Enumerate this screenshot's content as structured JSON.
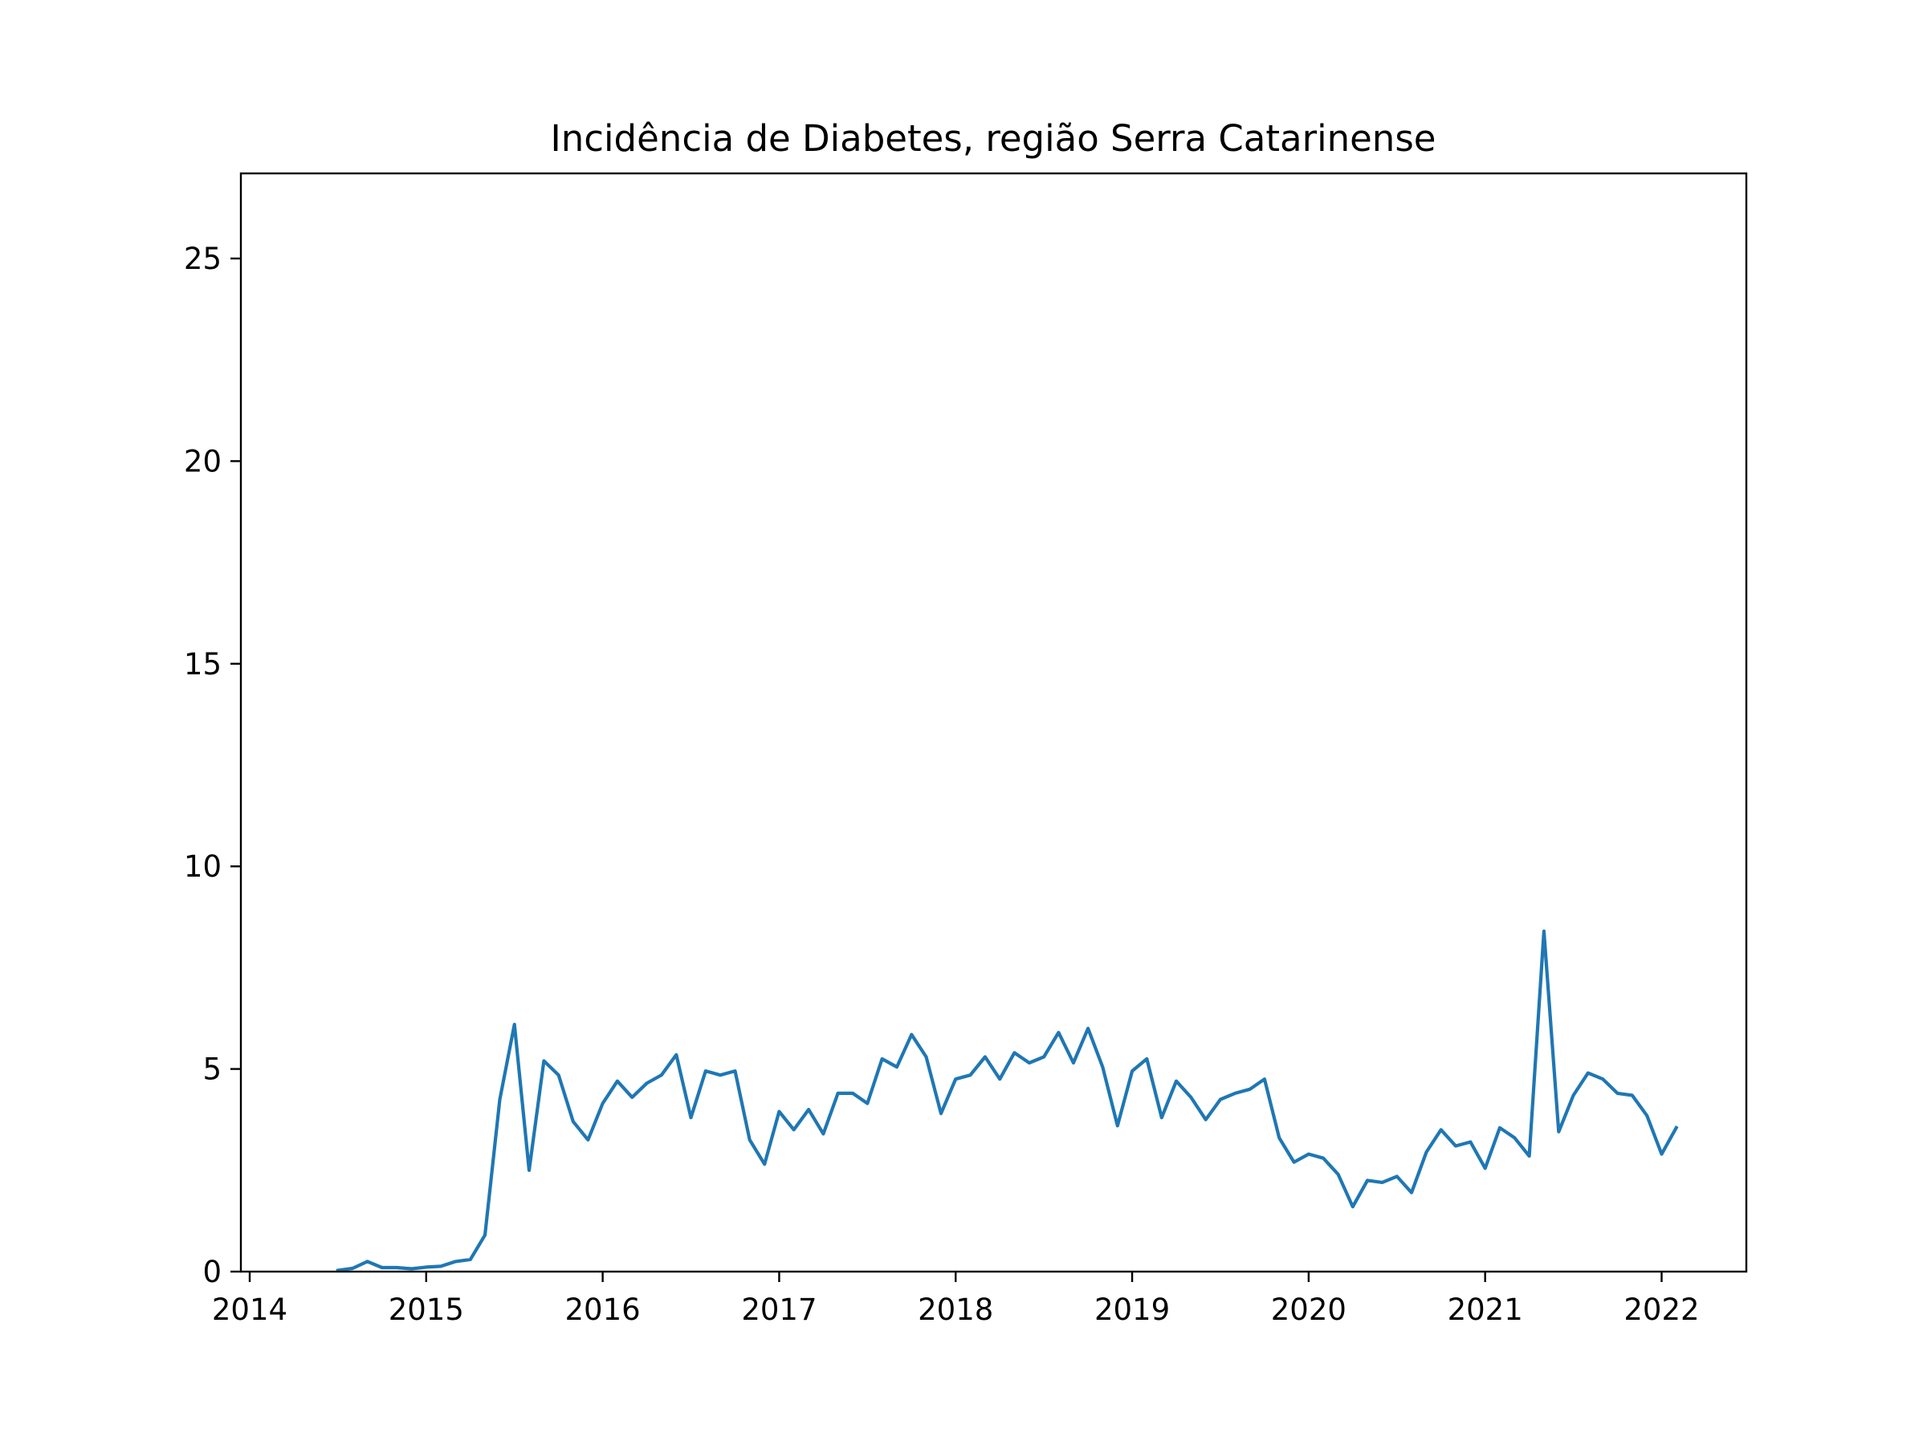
{
  "chart_data": {
    "type": "line",
    "title": "Incidência de Diabetes, região Serra Catarinense",
    "xlabel": "",
    "ylabel": "",
    "xlim": [
      2013.95,
      2022.48
    ],
    "ylim": [
      0,
      27.1
    ],
    "x_ticks": [
      2014,
      2015,
      2016,
      2017,
      2018,
      2019,
      2020,
      2021,
      2022
    ],
    "x_tick_labels": [
      "2014",
      "2015",
      "2016",
      "2017",
      "2018",
      "2019",
      "2020",
      "2021",
      "2022"
    ],
    "y_ticks": [
      0,
      5,
      10,
      15,
      20,
      25
    ],
    "y_tick_labels": [
      "0",
      "5",
      "10",
      "15",
      "20",
      "25"
    ],
    "grid": false,
    "series": [
      {
        "name": "Incidência",
        "color": "#1f77b4",
        "x": [
          2014.5,
          2014.583,
          2014.667,
          2014.75,
          2014.833,
          2014.917,
          2015.0,
          2015.083,
          2015.167,
          2015.25,
          2015.333,
          2015.417,
          2015.5,
          2015.583,
          2015.667,
          2015.75,
          2015.833,
          2015.917,
          2016.0,
          2016.083,
          2016.167,
          2016.25,
          2016.333,
          2016.417,
          2016.5,
          2016.583,
          2016.667,
          2016.75,
          2016.833,
          2016.917,
          2017.0,
          2017.083,
          2017.167,
          2017.25,
          2017.333,
          2017.417,
          2017.5,
          2017.583,
          2017.667,
          2017.75,
          2017.833,
          2017.917,
          2018.0,
          2018.083,
          2018.167,
          2018.25,
          2018.333,
          2018.417,
          2018.5,
          2018.583,
          2018.667,
          2018.75,
          2018.833,
          2018.917,
          2019.0,
          2019.083,
          2019.167,
          2019.25,
          2019.333,
          2019.417,
          2019.5,
          2019.583,
          2019.667,
          2019.75,
          2019.833,
          2019.917,
          2020.0,
          2020.083,
          2020.167,
          2020.25,
          2020.333,
          2020.417,
          2020.5,
          2020.583,
          2020.667,
          2020.75,
          2020.833,
          2020.917,
          2021.0,
          2021.083,
          2021.167,
          2021.25,
          2021.333,
          2021.417,
          2021.5,
          2021.583,
          2021.667,
          2021.75,
          2021.833,
          2021.917,
          2022.0,
          2022.083
        ],
        "values": [
          0.03,
          0.08,
          0.25,
          0.1,
          0.1,
          0.07,
          0.11,
          0.13,
          0.25,
          0.3,
          0.9,
          4.25,
          6.1,
          2.5,
          5.2,
          4.85,
          3.7,
          3.25,
          4.15,
          4.7,
          4.3,
          4.65,
          4.85,
          5.35,
          3.8,
          4.95,
          4.85,
          4.95,
          3.25,
          2.65,
          3.95,
          3.5,
          4.0,
          3.4,
          4.4,
          4.4,
          4.15,
          5.25,
          5.05,
          5.85,
          5.3,
          3.9,
          4.75,
          4.85,
          5.3,
          4.75,
          5.4,
          5.15,
          5.3,
          5.9,
          5.15,
          6.0,
          5.05,
          3.6,
          4.95,
          5.25,
          3.8,
          4.7,
          4.3,
          3.75,
          4.25,
          4.4,
          4.5,
          4.75,
          3.3,
          2.7,
          2.9,
          2.8,
          2.4,
          1.6,
          2.25,
          2.2,
          2.35,
          1.95,
          2.95,
          3.5,
          3.1,
          3.2,
          2.55,
          3.55,
          3.3,
          2.85,
          8.4,
          3.45,
          4.35,
          4.9,
          4.75,
          4.4,
          4.35,
          3.85,
          2.9,
          3.55
        ]
      }
    ]
  }
}
